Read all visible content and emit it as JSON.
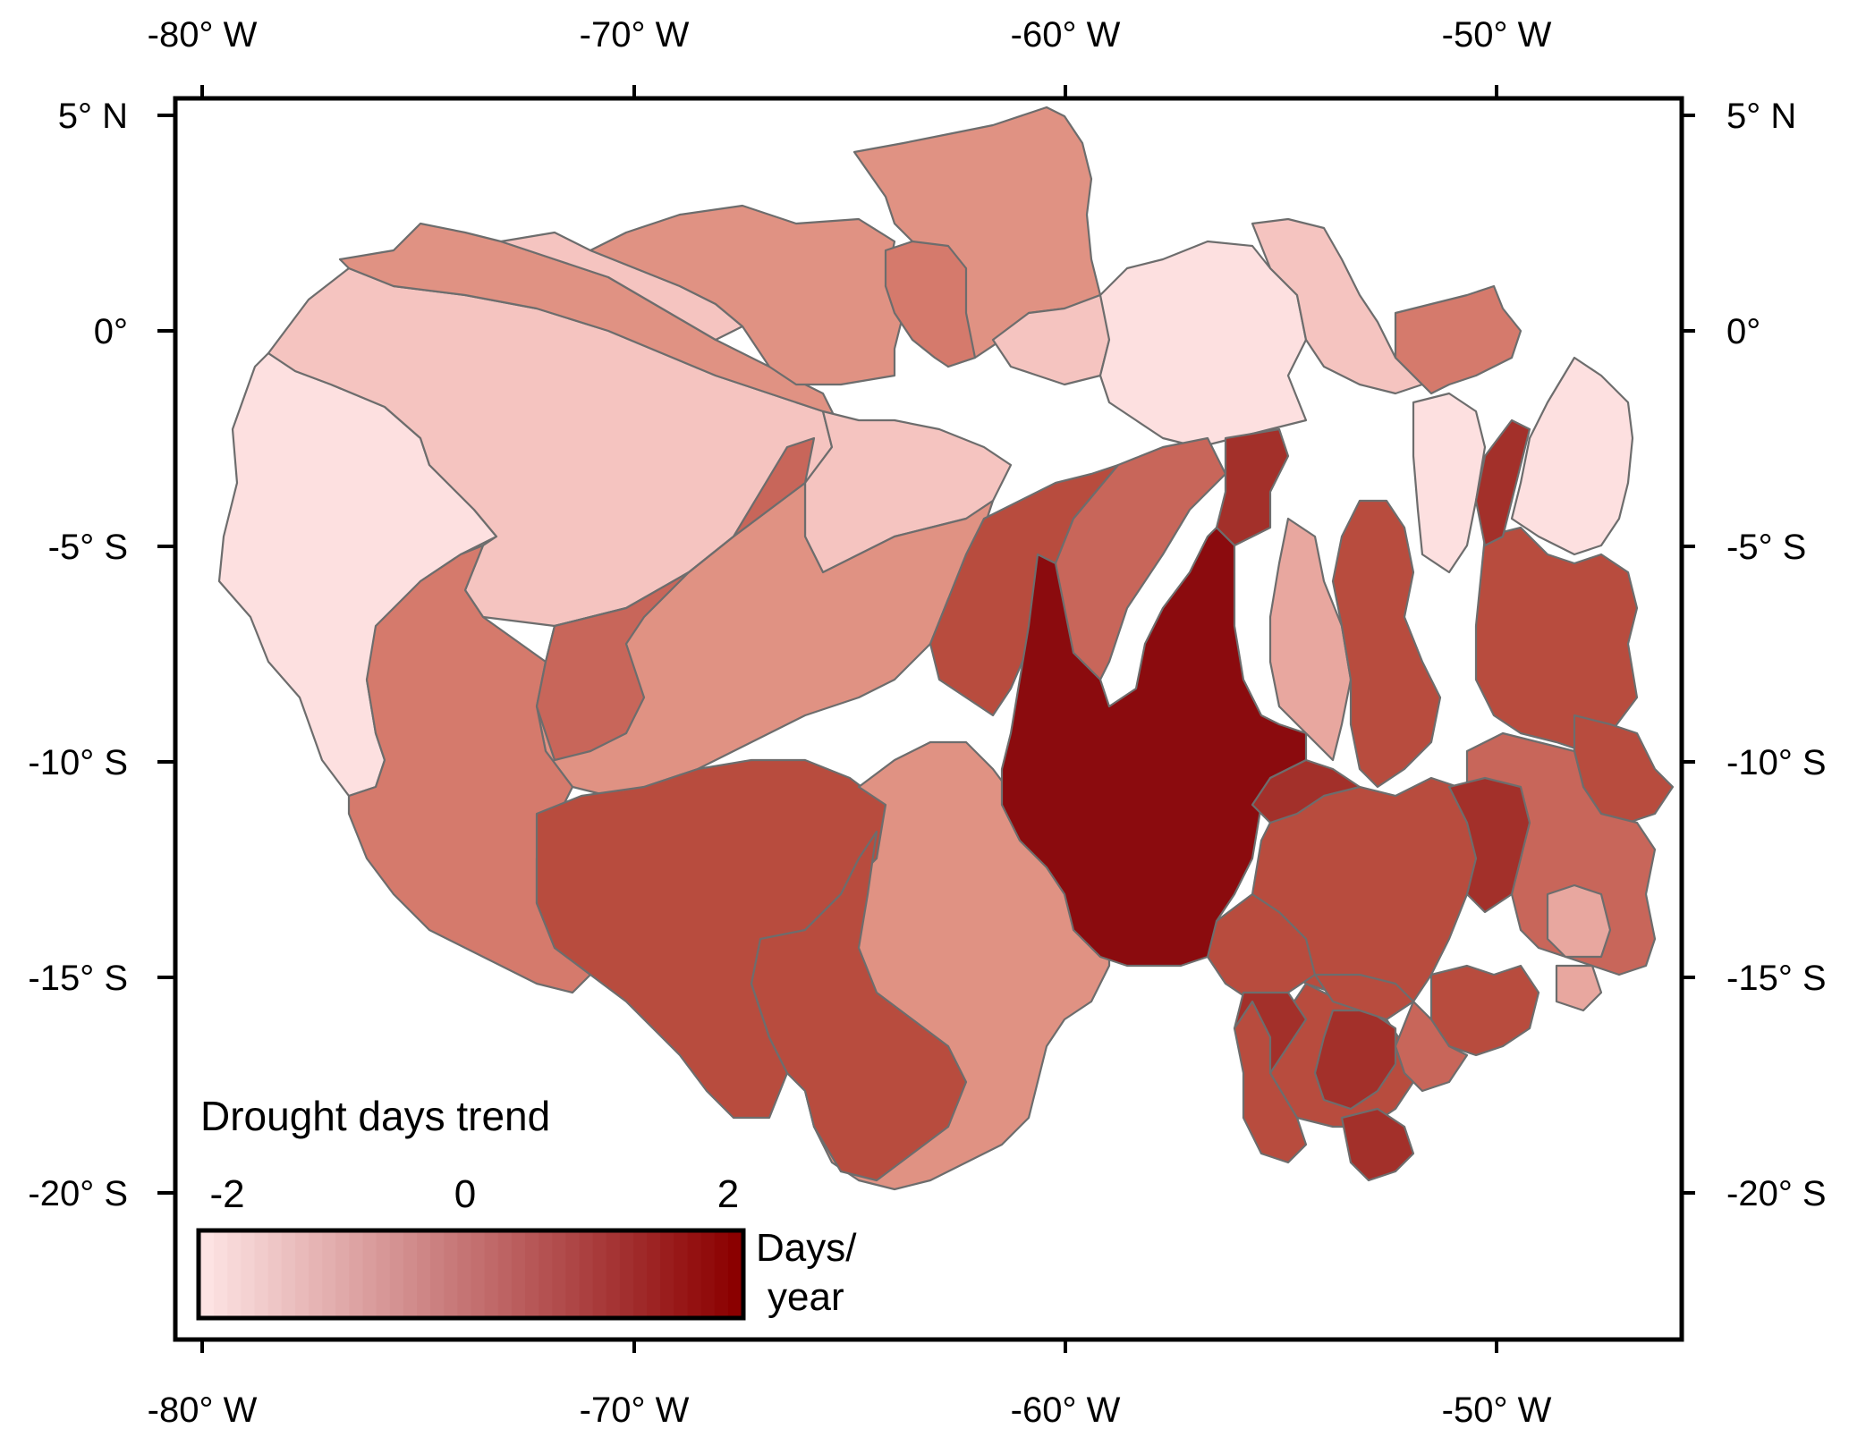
{
  "map": {
    "colors": {
      "frame": "#000000",
      "boundary": "#6d6d6d",
      "c1": "#fde0e0",
      "c2": "#f5c4c0",
      "c3": "#e8a79f",
      "c4": "#e09283",
      "c5": "#d57a6c",
      "c6": "#c8665a",
      "c7": "#b84c3e",
      "c8": "#a3302a",
      "c9": "#8b0b0e"
    },
    "x_ticks": [
      "-80° W",
      "-70° W",
      "-60° W",
      "-50° W"
    ],
    "y_ticks": [
      "5° N",
      "0°",
      "-5° S",
      "-10° S",
      "-15° S",
      "-20° S"
    ]
  },
  "legend": {
    "title": "Drought days trend",
    "ticks": [
      "-2",
      "0",
      "2"
    ],
    "unit_line1": "Days/",
    "unit_line2": "year",
    "min": -2,
    "max": 2,
    "color_start": "#fde3e3",
    "color_end": "#8b0000"
  }
}
